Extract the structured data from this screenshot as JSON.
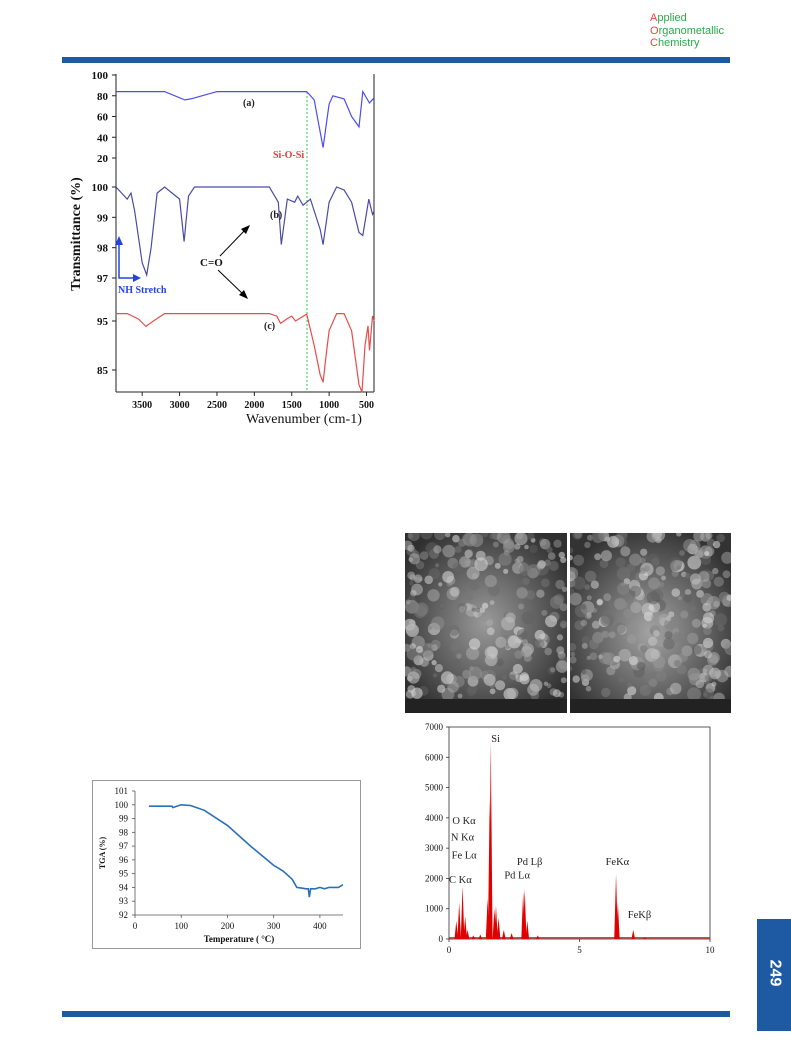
{
  "journal": {
    "logo_lines": [
      {
        "initial": "A",
        "rest": "pplied"
      },
      {
        "initial": "O",
        "rest": "rganometallic"
      },
      {
        "initial": "C",
        "rest": "hemistry"
      }
    ]
  },
  "page_number": "249",
  "colors": {
    "accent": "#1d5aa3",
    "logo_green": "#2aa84a",
    "logo_red": "#e8453c"
  },
  "chart_data": [
    {
      "type": "line",
      "title": "",
      "xlabel": "Wavenumber (cm-1)",
      "ylabel": "Transmittance (%)",
      "x_ticks": [
        3500,
        3000,
        2500,
        2000,
        1500,
        1000,
        500
      ],
      "xlim": [
        3850,
        400
      ],
      "x_reversed": true,
      "series": [
        {
          "name": "(a)",
          "color": "#4c4cf0",
          "y_ticks": [
            100,
            80,
            60,
            40,
            20
          ],
          "x": [
            3850,
            3200,
            2930,
            2850,
            2500,
            1700,
            1500,
            1300,
            1200,
            1080,
            1000,
            950,
            800,
            700,
            600,
            550,
            460,
            400
          ],
          "y": [
            84,
            84,
            76,
            77,
            84,
            84,
            84,
            84,
            76,
            30,
            72,
            80,
            77,
            60,
            50,
            84,
            73,
            78
          ]
        },
        {
          "name": "(b)",
          "color": "#4b4ba6",
          "y_ticks": [
            100,
            99,
            98,
            97
          ],
          "x": [
            3850,
            3700,
            3650,
            3600,
            3500,
            3440,
            3380,
            3300,
            3200,
            3000,
            2940,
            2880,
            2800,
            2500,
            1800,
            1680,
            1640,
            1560,
            1460,
            1420,
            1350,
            1250,
            1120,
            1080,
            1000,
            900,
            800,
            700,
            600,
            550,
            470,
            420,
            400
          ],
          "y": [
            100,
            99.6,
            99.8,
            99.2,
            97.5,
            97.1,
            98,
            99.8,
            100,
            99.6,
            98.2,
            99.7,
            100,
            100,
            100,
            99.5,
            98.1,
            99.6,
            99.5,
            99.7,
            99.4,
            99.6,
            98.6,
            98.1,
            99.5,
            100,
            99.9,
            99.5,
            98.5,
            98.4,
            99.6,
            99.1,
            99.2
          ]
        },
        {
          "name": "(c)",
          "color": "#e84c4c",
          "y_ticks": [
            95,
            85
          ],
          "x": [
            3850,
            3700,
            3550,
            3450,
            3350,
            3200,
            3000,
            2500,
            1800,
            1700,
            1650,
            1560,
            1500,
            1450,
            1300,
            1200,
            1120,
            1080,
            1040,
            1000,
            900,
            800,
            700,
            600,
            560,
            520,
            480,
            460,
            420,
            400
          ],
          "y": [
            96.5,
            96.5,
            95.4,
            93.9,
            95,
            96.5,
            96.5,
            96.5,
            96.5,
            96,
            94.5,
            95.5,
            96,
            95,
            96.4,
            90,
            84,
            82.5,
            88,
            93,
            96.5,
            96.5,
            93,
            82,
            80.5,
            90,
            94,
            89,
            96,
            95
          ]
        }
      ],
      "annotations": [
        "(a)",
        "(b)",
        "(c)",
        "Si-O-Si",
        "C=O",
        "NH Stretch"
      ]
    },
    {
      "type": "line",
      "title": "",
      "xlabel": "Temperature ( °C)",
      "ylabel": "TGA (%)",
      "xlim": [
        0,
        450
      ],
      "ylim": [
        92,
        101
      ],
      "x_ticks": [
        0,
        100,
        200,
        300,
        400
      ],
      "y_ticks": [
        92,
        93,
        94,
        95,
        96,
        97,
        98,
        99,
        100,
        101
      ],
      "series": [
        {
          "name": "",
          "color": "#2a70b8",
          "x": [
            30,
            60,
            80,
            82,
            100,
            120,
            150,
            200,
            250,
            300,
            320,
            340,
            350,
            360,
            370,
            375,
            377,
            380,
            390,
            400,
            410,
            420,
            440,
            450
          ],
          "y": [
            99.9,
            99.9,
            99.9,
            99.8,
            100,
            99.95,
            99.6,
            98.5,
            97,
            95.6,
            95.2,
            94.6,
            94,
            93.95,
            93.9,
            93.9,
            93.3,
            93.9,
            93.9,
            94,
            93.9,
            94,
            94,
            94.2
          ]
        }
      ]
    },
    {
      "type": "bar",
      "title": "",
      "xlabel": "",
      "ylabel": "",
      "xlim": [
        0,
        10
      ],
      "ylim": [
        0,
        7000
      ],
      "x_ticks": [
        0,
        5,
        10
      ],
      "y_ticks": [
        0,
        1000,
        2000,
        3000,
        4000,
        5000,
        6000,
        7000
      ],
      "color": "#e00000",
      "peaks": [
        {
          "x": 0.28,
          "y": 600
        },
        {
          "x": 0.39,
          "y": 1200
        },
        {
          "x": 0.52,
          "y": 1750
        },
        {
          "x": 0.62,
          "y": 750
        },
        {
          "x": 0.71,
          "y": 300
        },
        {
          "x": 0.93,
          "y": 120
        },
        {
          "x": 1.2,
          "y": 150
        },
        {
          "x": 1.48,
          "y": 1350
        },
        {
          "x": 1.56,
          "y": 4700
        },
        {
          "x": 1.6,
          "y": 6550
        },
        {
          "x": 1.74,
          "y": 1000
        },
        {
          "x": 1.8,
          "y": 1100
        },
        {
          "x": 1.9,
          "y": 700
        },
        {
          "x": 2.1,
          "y": 300
        },
        {
          "x": 2.4,
          "y": 200
        },
        {
          "x": 2.84,
          "y": 1550
        },
        {
          "x": 2.9,
          "y": 1650
        },
        {
          "x": 3.0,
          "y": 600
        },
        {
          "x": 3.4,
          "y": 120
        },
        {
          "x": 6.4,
          "y": 2150
        },
        {
          "x": 6.47,
          "y": 1200
        },
        {
          "x": 7.06,
          "y": 300
        },
        {
          "x": 7.5,
          "y": 60
        }
      ],
      "labels": [
        {
          "text": "Si",
          "x": 1.62,
          "y": 6500
        },
        {
          "text": "O Kα",
          "x": 0.13,
          "y": 3800
        },
        {
          "text": "N Kα",
          "x": 0.07,
          "y": 3250
        },
        {
          "text": "Fe Lα",
          "x": 0.1,
          "y": 2650
        },
        {
          "text": "C Kα",
          "x": 0.0,
          "y": 1850
        },
        {
          "text": "Pd Lβ",
          "x": 2.6,
          "y": 2450
        },
        {
          "text": "Pd Lα",
          "x": 2.12,
          "y": 2000
        },
        {
          "text": "FeKα",
          "x": 6.0,
          "y": 2450
        },
        {
          "text": "FeKβ",
          "x": 6.85,
          "y": 700
        }
      ]
    }
  ]
}
